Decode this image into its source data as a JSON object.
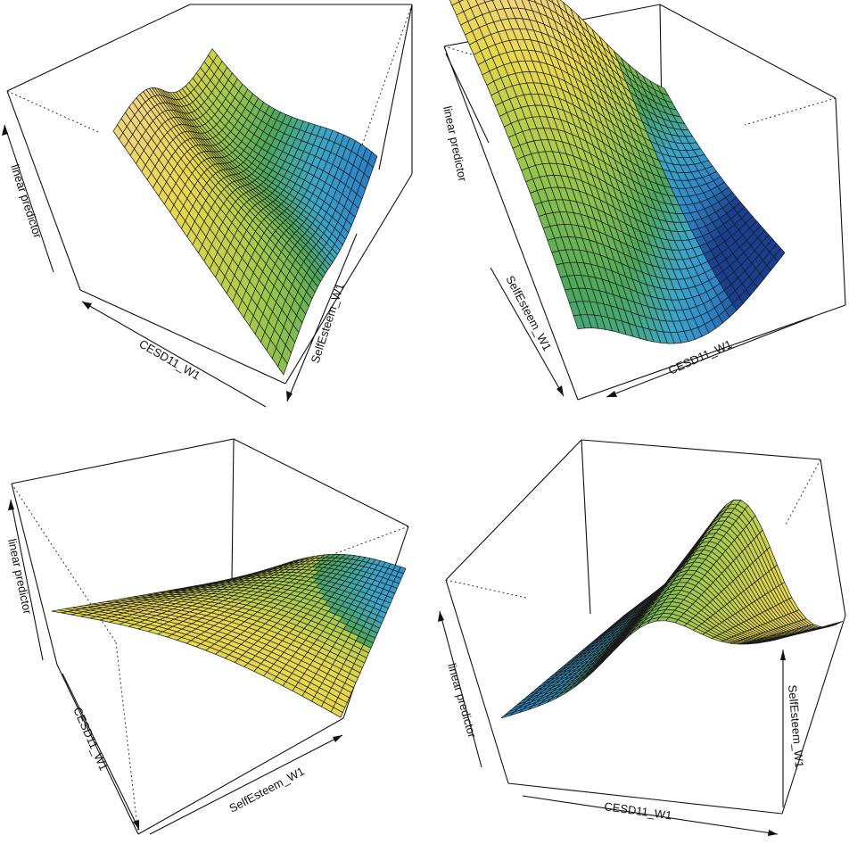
{
  "chart_data": [
    {
      "type": "surface",
      "panel": "top-left",
      "xlabel": "CESD11_W1",
      "ylabel": "SelfEsteem_W1",
      "zlabel": "linear predictor",
      "grid_resolution": 30,
      "color_scale": [
        "#1a3f8f",
        "#2d86c8",
        "#3aa7c9",
        "#4ca85a",
        "#9fc84a",
        "#e8d84a",
        "#f2d38a"
      ]
    },
    {
      "type": "surface",
      "panel": "top-right",
      "xlabel": "CESD11_W1",
      "ylabel": "SelfEsteem_W1",
      "zlabel": "linear predictor",
      "grid_resolution": 30,
      "color_scale": [
        "#1a3f8f",
        "#2d86c8",
        "#3aa7c9",
        "#4ca85a",
        "#9fc84a",
        "#e8d84a",
        "#f2d38a"
      ]
    },
    {
      "type": "surface",
      "panel": "bottom-left",
      "xlabel": "CESD11_W1",
      "ylabel": "SelfEsteem_W1",
      "zlabel": "linear predictor",
      "grid_resolution": 30,
      "color_scale": [
        "#1a3f8f",
        "#2d86c8",
        "#3aa7c9",
        "#4ca85a",
        "#9fc84a",
        "#e8d84a",
        "#f2d38a"
      ]
    },
    {
      "type": "surface",
      "panel": "bottom-right",
      "xlabel": "CESD11_W1",
      "ylabel": "SelfEsteem_W1",
      "zlabel": "linear predictor",
      "grid_resolution": 30,
      "color_scale": [
        "#1a3f8f",
        "#2d86c8",
        "#3aa7c9",
        "#4ca85a",
        "#9fc84a",
        "#e8d84a",
        "#f2d38a"
      ]
    }
  ]
}
